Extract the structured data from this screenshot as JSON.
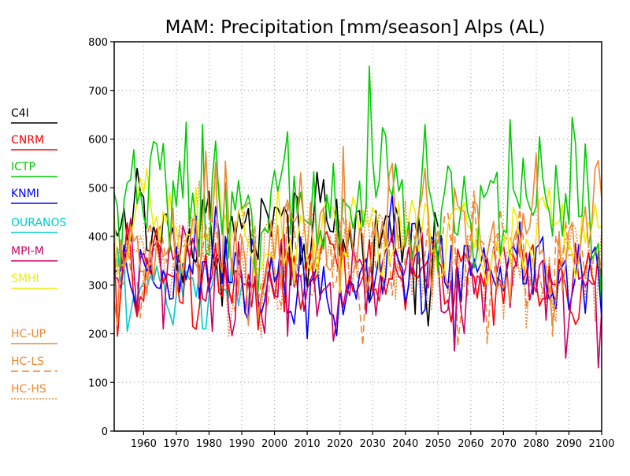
{
  "chart_data": {
    "type": "line",
    "title": "MAM: Precipitation [mm/season] Alps (AL)",
    "xlabel": "",
    "ylabel": "",
    "xlim": [
      1951,
      2100
    ],
    "ylim": [
      0,
      800
    ],
    "xticks": [
      1960,
      1970,
      1980,
      1990,
      2000,
      2010,
      2020,
      2030,
      2040,
      2050,
      2060,
      2070,
      2080,
      2090,
      2100
    ],
    "yticks": [
      0,
      100,
      200,
      300,
      400,
      500,
      600,
      700,
      800
    ],
    "grid": true,
    "legend_position": "left",
    "series": [
      {
        "name": "C4I",
        "color": "#000000",
        "style": "solid",
        "x_range": [
          1951,
          2050
        ],
        "mean": 400,
        "amp": 55,
        "anchors": [
          [
            1953,
            420
          ],
          [
            1958,
            540
          ],
          [
            1960,
            480
          ],
          [
            1970,
            330
          ],
          [
            2000,
            460
          ],
          [
            2005,
            300
          ],
          [
            2025,
            450
          ],
          [
            2043,
            240
          ],
          [
            2050,
            420
          ]
        ]
      },
      {
        "name": "CNRM",
        "color": "#ff0000",
        "style": "solid",
        "x_range": [
          1951,
          2100
        ],
        "mean": 320,
        "amp": 45,
        "anchors": [
          [
            1952,
            195
          ],
          [
            1975,
            215
          ],
          [
            2008,
            250
          ],
          [
            2050,
            350
          ],
          [
            2100,
            300
          ]
        ]
      },
      {
        "name": "ICTP",
        "color": "#00cc00",
        "style": "solid",
        "x_range": [
          1951,
          2100
        ],
        "mean": 455,
        "amp": 60,
        "anchors": [
          [
            1963,
            595
          ],
          [
            1973,
            635
          ],
          [
            1978,
            630
          ],
          [
            2004,
            615
          ],
          [
            2029,
            750
          ],
          [
            2072,
            640
          ],
          [
            2081,
            605
          ],
          [
            2091,
            645
          ],
          [
            2095,
            590
          ],
          [
            2100,
            260
          ]
        ]
      },
      {
        "name": "KNMI",
        "color": "#0000ff",
        "style": "solid",
        "x_range": [
          1951,
          2100
        ],
        "mean": 340,
        "amp": 45,
        "anchors": [
          [
            2010,
            190
          ],
          [
            2035,
            430
          ],
          [
            2045,
            240
          ],
          [
            2055,
            165
          ],
          [
            2065,
            330
          ],
          [
            2090,
            250
          ],
          [
            2100,
            230
          ]
        ]
      },
      {
        "name": "OURANOS",
        "color": "#00cccc",
        "style": "solid",
        "x_range": [
          1951,
          1990
        ],
        "mean": 290,
        "amp": 40,
        "anchors": [
          [
            1955,
            205
          ],
          [
            1962,
            320
          ],
          [
            1970,
            280
          ],
          [
            1978,
            210
          ],
          [
            1984,
            290
          ],
          [
            1990,
            300
          ]
        ]
      },
      {
        "name": "MPI-M",
        "color": "#cc0066",
        "style": "solid",
        "x_range": [
          1951,
          2100
        ],
        "mean": 320,
        "amp": 50,
        "anchors": [
          [
            1966,
            210
          ],
          [
            2004,
            195
          ],
          [
            2018,
            185
          ],
          [
            2055,
            165
          ],
          [
            2089,
            150
          ],
          [
            2099,
            130
          ]
        ]
      },
      {
        "name": "SMHI",
        "color": "#eeee00",
        "style": "solid",
        "x_range": [
          1951,
          2100
        ],
        "mean": 400,
        "amp": 45,
        "anchors": [
          [
            1976,
            500
          ],
          [
            2001,
            500
          ],
          [
            2058,
            470
          ],
          [
            2100,
            420
          ]
        ]
      },
      {
        "name": "HC-UP",
        "color": "#ee8833",
        "style": "solid",
        "x_range": [
          1951,
          2100
        ],
        "mean": 380,
        "amp": 60,
        "anchors": [
          [
            1979,
            575
          ],
          [
            1985,
            555
          ],
          [
            2021,
            585
          ],
          [
            2035,
            525
          ],
          [
            2046,
            540
          ],
          [
            2055,
            500
          ],
          [
            2080,
            570
          ],
          [
            2098,
            540
          ]
        ]
      },
      {
        "name": "HC-LS",
        "color": "#ee8833",
        "style": "dashed",
        "x_range": [
          1951,
          2100
        ],
        "mean": 370,
        "amp": 55,
        "anchors": [
          [
            1960,
            320
          ],
          [
            2030,
            430
          ],
          [
            2056,
            175
          ],
          [
            2065,
            180
          ],
          [
            2085,
            195
          ]
        ]
      },
      {
        "name": "HC-HS",
        "color": "#ee8833",
        "style": "dotted",
        "x_range": [
          1951,
          2100
        ],
        "mean": 350,
        "amp": 55,
        "anchors": [
          [
            1986,
            195
          ],
          [
            2048,
            250
          ],
          [
            2070,
            230
          ],
          [
            2098,
            225
          ]
        ]
      }
    ]
  }
}
